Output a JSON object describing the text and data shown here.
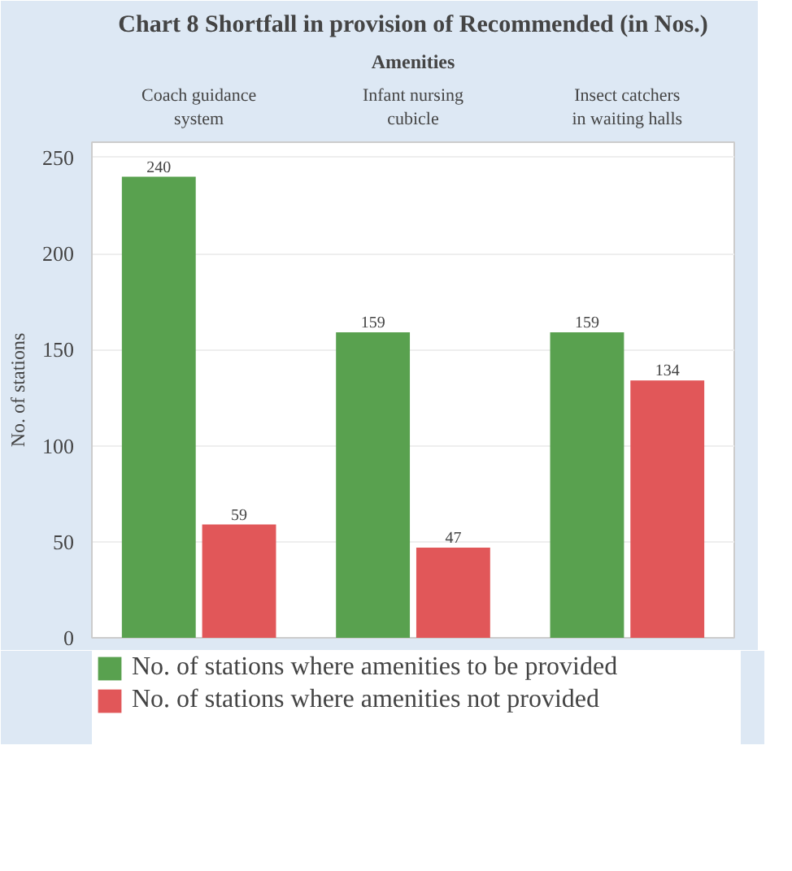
{
  "chart_data": {
    "type": "bar",
    "title": "Chart 8 Shortfall in provision of Recommended (in Nos.)",
    "xlabel": "Amenities",
    "ylabel": "No. of stations",
    "categories": [
      "Coach guidance system",
      "Infant nursing cubicle",
      "Insect catchers in waiting halls"
    ],
    "series": [
      {
        "name": "No. of stations where amenities to be provided",
        "color": "#59a14f",
        "values": [
          240,
          159,
          159
        ]
      },
      {
        "name": "No. of stations where amenities not provided",
        "color": "#e15759",
        "values": [
          59,
          47,
          134
        ]
      }
    ],
    "ylim": [
      0,
      258
    ],
    "yticks": [
      0,
      50,
      100,
      150,
      200,
      250
    ],
    "grid": "y",
    "legend": "bottom",
    "data_labels": true
  }
}
